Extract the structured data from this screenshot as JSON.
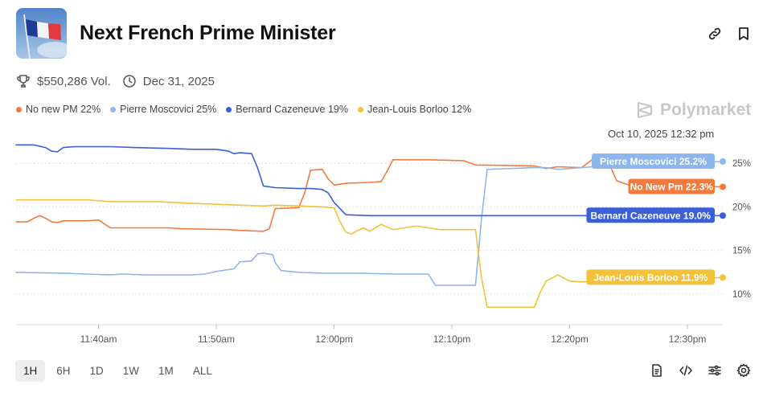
{
  "header": {
    "title": "Next French Prime Minister",
    "volume": "$550,286 Vol.",
    "end_date": "Dec 31, 2025"
  },
  "brand": {
    "name": "Polymarket"
  },
  "timestamp": "Oct 10, 2025 12:32 pm",
  "legend": [
    {
      "label": "No new PM 22%",
      "color": "#f47a3c"
    },
    {
      "label": "Pierre Moscovici 25%",
      "color": "#8db6ef"
    },
    {
      "label": "Bernard Cazeneuve 19%",
      "color": "#3a5fd9"
    },
    {
      "label": "Jean-Louis Borloo 12%",
      "color": "#f3c13a"
    }
  ],
  "range_buttons": [
    "1H",
    "6H",
    "1D",
    "1W",
    "1M",
    "ALL"
  ],
  "range_selected": "1H",
  "chart_data": {
    "type": "line",
    "title": "Next French Prime Minister",
    "x_unit": "minutes after 11:33am",
    "x_ticks": [
      {
        "t": 7,
        "label": "11:40am"
      },
      {
        "t": 17,
        "label": "11:50am"
      },
      {
        "t": 27,
        "label": "12:00pm"
      },
      {
        "t": 37,
        "label": "12:10pm"
      },
      {
        "t": 47,
        "label": "12:20pm"
      },
      {
        "t": 57,
        "label": "12:30pm"
      }
    ],
    "y_ticks": [
      {
        "v": 10,
        "label": "10%"
      },
      {
        "v": 15,
        "label": "15%"
      },
      {
        "v": 20,
        "label": "20%"
      },
      {
        "v": 25,
        "label": "25%"
      }
    ],
    "xlim": [
      0,
      60
    ],
    "ylim": [
      6.5,
      27.5
    ],
    "grid": "horizontal dotted",
    "series": [
      {
        "name": "No New Pm",
        "end_label": "No New Pm 22.3%",
        "end_value": 22.3,
        "color": "#f47a3c",
        "points": [
          [
            0,
            18.3
          ],
          [
            1,
            18.3
          ],
          [
            1.5,
            18.7
          ],
          [
            2,
            19.0
          ],
          [
            2.5,
            18.7
          ],
          [
            3,
            18.3
          ],
          [
            3.5,
            18.2
          ],
          [
            4,
            18.4
          ],
          [
            6,
            18.4
          ],
          [
            7,
            18.5
          ],
          [
            8,
            17.6
          ],
          [
            13,
            17.6
          ],
          [
            14,
            17.5
          ],
          [
            18,
            17.4
          ],
          [
            19,
            17.3
          ],
          [
            21,
            17.2
          ],
          [
            21.5,
            17.5
          ],
          [
            22,
            19.8
          ],
          [
            24,
            19.9
          ],
          [
            24.5,
            21.6
          ],
          [
            25,
            24.2
          ],
          [
            26,
            24.3
          ],
          [
            26.5,
            23.2
          ],
          [
            27,
            22.5
          ],
          [
            28,
            22.7
          ],
          [
            30,
            22.8
          ],
          [
            31,
            22.9
          ],
          [
            31.5,
            24.1
          ],
          [
            32,
            25.4
          ],
          [
            35,
            25.4
          ],
          [
            38,
            25.3
          ],
          [
            39,
            24.8
          ],
          [
            44,
            24.7
          ],
          [
            45,
            24.4
          ],
          [
            46,
            24.6
          ],
          [
            48,
            24.5
          ],
          [
            49,
            25.5
          ],
          [
            49.6,
            26.0
          ],
          [
            50,
            26.0
          ],
          [
            51,
            23.0
          ],
          [
            52,
            22.5
          ],
          [
            60,
            22.3
          ]
        ]
      },
      {
        "name": "Pierre Moscovici",
        "end_label": "Pierre Moscovici 25.2%",
        "end_value": 25.2,
        "color": "#8db6ef",
        "points": [
          [
            0,
            12.5
          ],
          [
            4,
            12.4
          ],
          [
            6,
            12.3
          ],
          [
            8,
            12.2
          ],
          [
            9,
            12.3
          ],
          [
            11,
            12.2
          ],
          [
            12,
            12.2
          ],
          [
            14,
            12.2
          ],
          [
            15,
            12.2
          ],
          [
            16,
            12.3
          ],
          [
            17,
            12.6
          ],
          [
            18,
            12.8
          ],
          [
            18.5,
            12.9
          ],
          [
            19,
            13.7
          ],
          [
            20,
            13.8
          ],
          [
            20.5,
            14.6
          ],
          [
            21,
            14.7
          ],
          [
            21.8,
            14.5
          ],
          [
            22,
            13.6
          ],
          [
            22.5,
            12.7
          ],
          [
            24,
            12.5
          ],
          [
            26,
            12.4
          ],
          [
            29,
            12.4
          ],
          [
            32,
            12.3
          ],
          [
            35,
            12.3
          ],
          [
            35.6,
            11.0
          ],
          [
            38,
            11.0
          ],
          [
            39,
            11.0
          ],
          [
            39.5,
            18.5
          ],
          [
            40,
            24.3
          ],
          [
            44,
            24.5
          ],
          [
            45,
            24.5
          ],
          [
            46,
            24.3
          ],
          [
            47,
            24.4
          ],
          [
            49,
            24.6
          ],
          [
            51,
            24.8
          ],
          [
            60,
            25.2
          ]
        ]
      },
      {
        "name": "Bernard Cazeneuve",
        "end_label": "Bernard Cazeneuve 19.0%",
        "end_value": 19.0,
        "color": "#3a5fd9",
        "points": [
          [
            0,
            27.1
          ],
          [
            1.5,
            27.1
          ],
          [
            2.5,
            26.8
          ],
          [
            3,
            26.4
          ],
          [
            3.5,
            26.3
          ],
          [
            4,
            26.8
          ],
          [
            5,
            26.9
          ],
          [
            8,
            26.9
          ],
          [
            10,
            26.8
          ],
          [
            13,
            26.7
          ],
          [
            15,
            26.6
          ],
          [
            17,
            26.6
          ],
          [
            18,
            26.4
          ],
          [
            18.5,
            26.1
          ],
          [
            19,
            26.2
          ],
          [
            20,
            26.1
          ],
          [
            20.5,
            24.5
          ],
          [
            21,
            22.4
          ],
          [
            22,
            22.2
          ],
          [
            24,
            22.1
          ],
          [
            25,
            22.1
          ],
          [
            26,
            22.0
          ],
          [
            26.5,
            21.6
          ],
          [
            27,
            20.5
          ],
          [
            28,
            19.1
          ],
          [
            30,
            19.0
          ],
          [
            35,
            19.0
          ],
          [
            40,
            19.0
          ],
          [
            50,
            19.0
          ],
          [
            60,
            19.0
          ]
        ]
      },
      {
        "name": "Jean-Louis Borloo",
        "end_label": "Jean-Louis Borloo 11.9%",
        "end_value": 11.9,
        "color": "#f3c13a",
        "points": [
          [
            0,
            20.8
          ],
          [
            6,
            20.8
          ],
          [
            8,
            20.6
          ],
          [
            12,
            20.6
          ],
          [
            15,
            20.4
          ],
          [
            17,
            20.3
          ],
          [
            19,
            20.2
          ],
          [
            21,
            20.1
          ],
          [
            22,
            20.2
          ],
          [
            24,
            20.1
          ],
          [
            26,
            20.0
          ],
          [
            27,
            19.9
          ],
          [
            27.5,
            18.3
          ],
          [
            28,
            17.1
          ],
          [
            28.5,
            16.9
          ],
          [
            29,
            17.3
          ],
          [
            29.5,
            17.6
          ],
          [
            30,
            17.2
          ],
          [
            30.5,
            17.6
          ],
          [
            31,
            18.0
          ],
          [
            32,
            17.4
          ],
          [
            33,
            17.6
          ],
          [
            34,
            17.8
          ],
          [
            35,
            17.6
          ],
          [
            36,
            17.4
          ],
          [
            39,
            17.4
          ],
          [
            39.5,
            12.0
          ],
          [
            40,
            8.5
          ],
          [
            42,
            8.5
          ],
          [
            44,
            8.5
          ],
          [
            44.5,
            10.2
          ],
          [
            45,
            11.5
          ],
          [
            46,
            12.2
          ],
          [
            47,
            11.5
          ],
          [
            48,
            11.4
          ],
          [
            50,
            11.5
          ],
          [
            60,
            11.9
          ]
        ]
      }
    ]
  }
}
